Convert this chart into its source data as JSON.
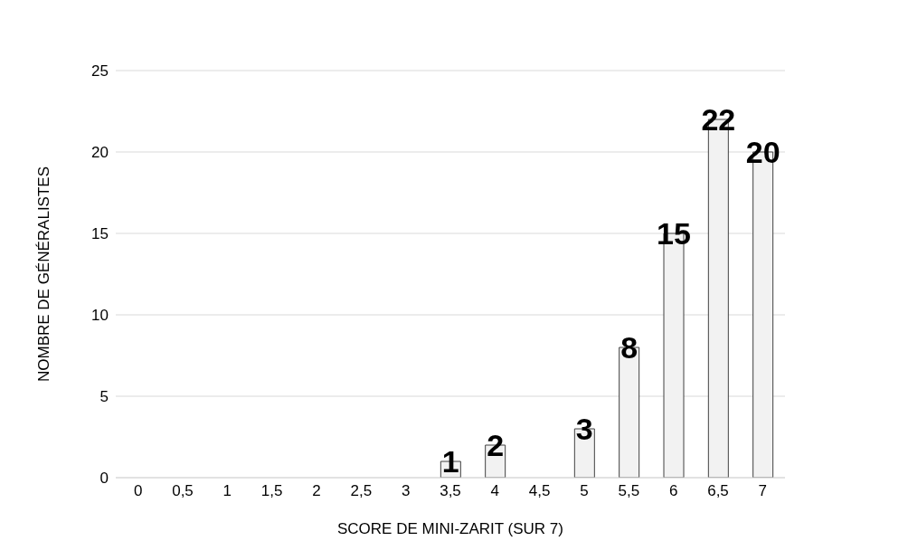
{
  "chart_data": {
    "type": "bar",
    "xlabel": "SCORE DE MINI-ZARIT (SUR 7)",
    "ylabel": "NOMBRE DE GÉNÉRALISTES",
    "categories": [
      "0",
      "0,5",
      "1",
      "1,5",
      "2",
      "2,5",
      "3",
      "3,5",
      "4",
      "4,5",
      "5",
      "5,5",
      "6",
      "6,5",
      "7"
    ],
    "values": [
      0,
      0,
      0,
      0,
      0,
      0,
      0,
      1,
      2,
      0,
      3,
      8,
      15,
      22,
      20
    ],
    "value_labels": [
      null,
      null,
      null,
      null,
      null,
      null,
      null,
      "1",
      "2",
      null,
      "3",
      "8",
      "15",
      "22",
      "20"
    ],
    "color": "#f2f2f2",
    "ylim": [
      0,
      25
    ],
    "yticks": [
      0,
      5,
      10,
      15,
      20,
      25
    ],
    "grid": "y"
  }
}
